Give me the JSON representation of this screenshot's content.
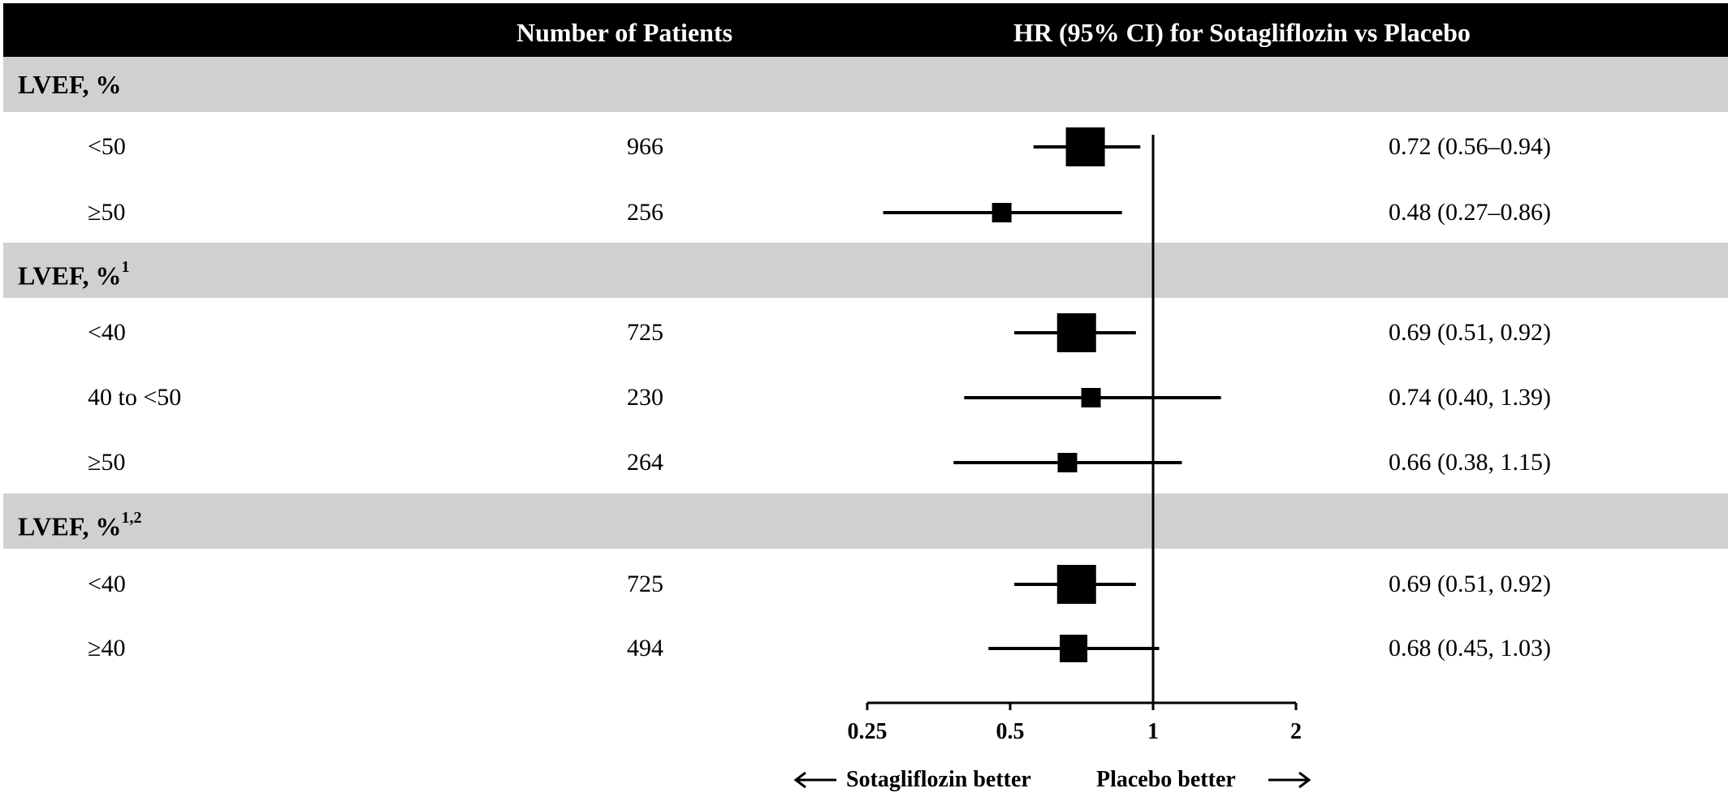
{
  "header": {
    "col_patients": "Number of Patients",
    "col_hr": "HR (95% CI) for Sotagliflozin vs Placebo"
  },
  "direction_labels": {
    "left": "Sotagliflozin  better",
    "right": "Placebo better"
  },
  "colors": {
    "header_bg": "#000000",
    "header_text": "#ffffff",
    "group_bg": "#d0d0d0",
    "marker": "#000000"
  },
  "chart_data": {
    "type": "forest",
    "x_scale": "log",
    "reference_line": 1,
    "xlim": [
      0.25,
      2
    ],
    "xticks": [
      0.25,
      0.5,
      1,
      2
    ],
    "xtick_labels": [
      "0.25",
      "0.5",
      "1",
      "2"
    ],
    "groups": [
      {
        "label": "LVEF, %",
        "sup": "",
        "rows": [
          {
            "label": "<50",
            "n": "966",
            "hr": 0.72,
            "lo": 0.56,
            "hi": 0.94,
            "hr_text": "0.72 (0.56–0.94)"
          },
          {
            "label": "≥50",
            "n": "256",
            "hr": 0.48,
            "lo": 0.27,
            "hi": 0.86,
            "hr_text": "0.48 (0.27–0.86)"
          }
        ]
      },
      {
        "label": "LVEF, %",
        "sup": "1",
        "rows": [
          {
            "label": "<40",
            "n": "725",
            "hr": 0.69,
            "lo": 0.51,
            "hi": 0.92,
            "hr_text": "0.69 (0.51, 0.92)"
          },
          {
            "label": "40 to <50",
            "n": "230",
            "hr": 0.74,
            "lo": 0.4,
            "hi": 1.39,
            "hr_text": "0.74 (0.40, 1.39)"
          },
          {
            "label": "≥50",
            "n": "264",
            "hr": 0.66,
            "lo": 0.38,
            "hi": 1.15,
            "hr_text": "0.66 (0.38, 1.15)"
          }
        ]
      },
      {
        "label": "LVEF, %",
        "sup": "1,2",
        "rows": [
          {
            "label": "<40",
            "n": "725",
            "hr": 0.69,
            "lo": 0.51,
            "hi": 0.92,
            "hr_text": "0.69 (0.51, 0.92)"
          },
          {
            "label": "≥40",
            "n": "494",
            "hr": 0.68,
            "lo": 0.45,
            "hi": 1.03,
            "hr_text": "0.68 (0.45, 1.03)"
          }
        ]
      }
    ]
  }
}
